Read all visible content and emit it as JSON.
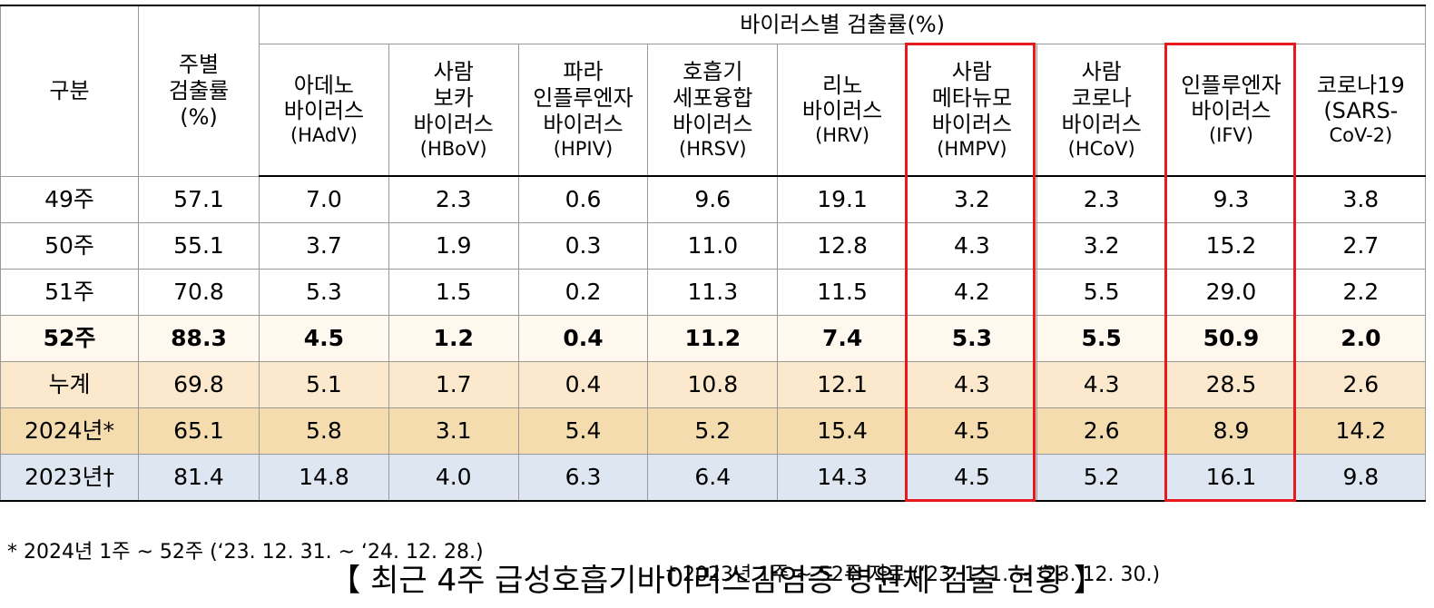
{
  "table": {
    "header": {
      "row_label": "구분",
      "weekly": [
        "주별",
        "검출률",
        "(%)"
      ],
      "group": "바이러스별 검출률(%)",
      "viruses": [
        [
          "아데노",
          "바이러스",
          "(HAdV)"
        ],
        [
          "사람",
          "보카",
          "바이러스",
          "(HBoV)"
        ],
        [
          "파라",
          "인플루엔자",
          "바이러스",
          "(HPIV)"
        ],
        [
          "호흡기",
          "세포융합",
          "바이러스",
          "(HRSV)"
        ],
        [
          "리노",
          "바이러스",
          "(HRV)"
        ],
        [
          "사람",
          "메타뉴모",
          "바이러스",
          "(HMPV)"
        ],
        [
          "사람",
          "코로나",
          "바이러스",
          "(HCoV)"
        ],
        [
          "인플루엔자",
          "바이러스",
          "(IFV)"
        ],
        [
          "코로나19",
          "(SARS-",
          "CoV-2)"
        ]
      ]
    },
    "rows": [
      [
        "49주",
        "57.1",
        "7.0",
        "2.3",
        "0.6",
        "9.6",
        "19.1",
        "3.2",
        "2.3",
        "9.3",
        "3.8"
      ],
      [
        "50주",
        "55.1",
        "3.7",
        "1.9",
        "0.3",
        "11.0",
        "12.8",
        "4.3",
        "3.2",
        "15.2",
        "2.7"
      ],
      [
        "51주",
        "70.8",
        "5.3",
        "1.5",
        "0.2",
        "11.3",
        "11.5",
        "4.2",
        "5.5",
        "29.0",
        "2.2"
      ],
      [
        "52주",
        "88.3",
        "4.5",
        "1.2",
        "0.4",
        "11.2",
        "7.4",
        "5.3",
        "5.5",
        "50.9",
        "2.0"
      ],
      [
        "누계",
        "69.8",
        "5.1",
        "1.7",
        "0.4",
        "10.8",
        "12.1",
        "4.3",
        "4.3",
        "28.5",
        "2.6"
      ],
      [
        "2024년*",
        "65.1",
        "5.8",
        "3.1",
        "5.4",
        "5.2",
        "15.4",
        "4.5",
        "2.6",
        "8.9",
        "14.2"
      ],
      [
        "2023년†",
        "81.4",
        "14.8",
        "4.0",
        "6.3",
        "6.4",
        "14.3",
        "4.5",
        "5.2",
        "16.1",
        "9.8"
      ]
    ]
  },
  "footnotes": [
    "* 2024년 1주 ~ 52주 (‘23. 12. 31. ~ ‘24. 12. 28.)",
    "† 2023년 1주 ~ 52주 자료 (‘23. 1. 1. ~ ‘23. 12. 30.)"
  ],
  "caption": "【 최근 4주 급성호흡기바이러스감염증 병원체 검출 현황 】"
}
